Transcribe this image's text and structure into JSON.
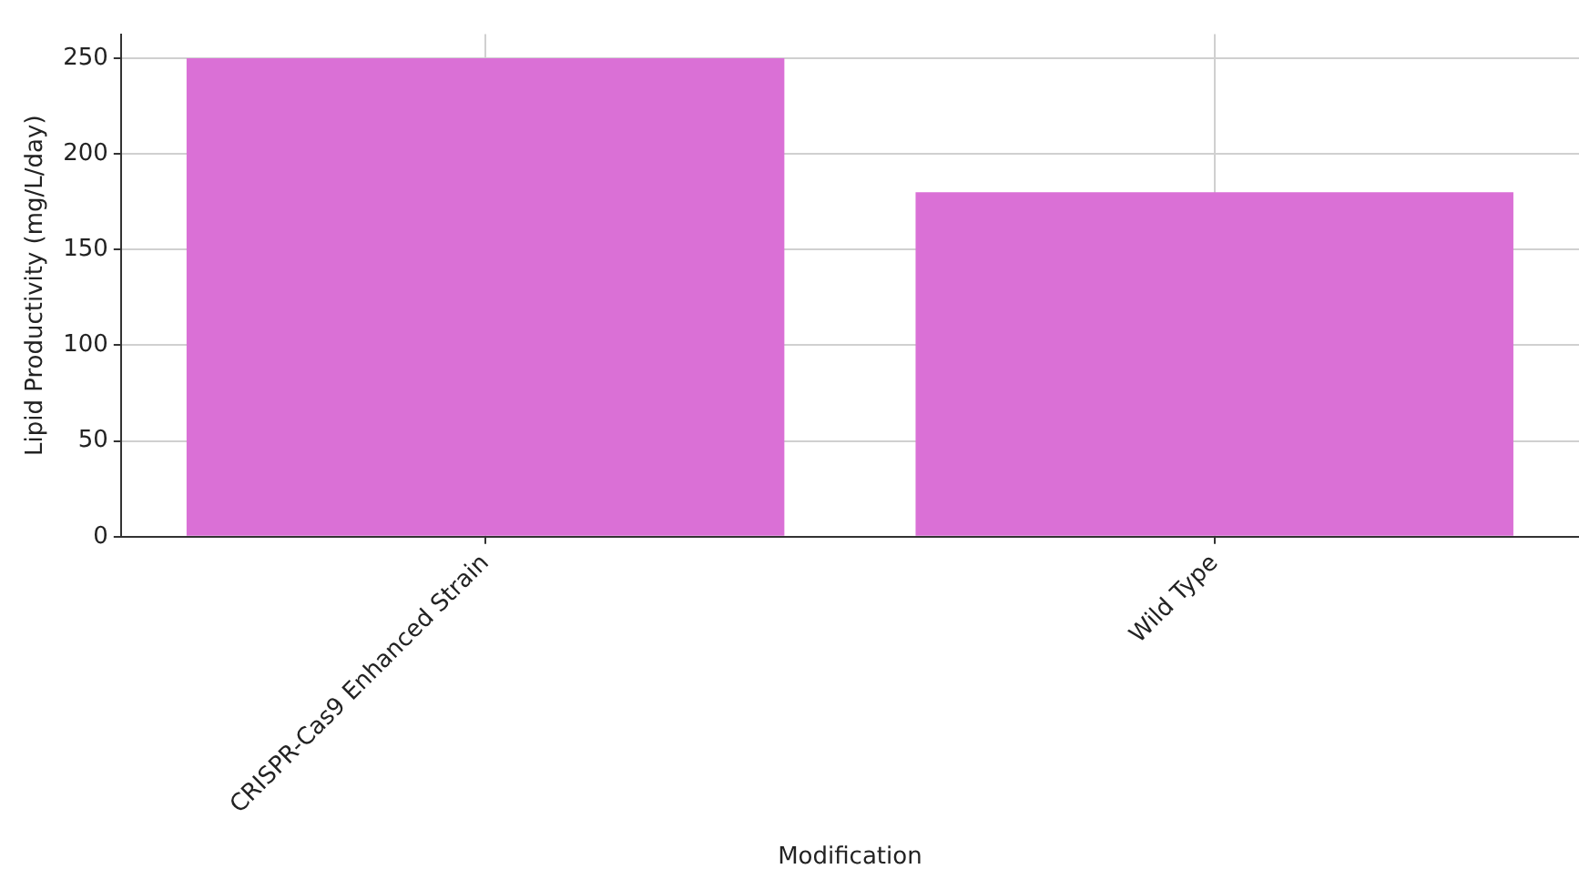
{
  "chart_data": {
    "type": "bar",
    "xlabel": "Modification",
    "ylabel": "Lipid Productivity (mg/L/day)",
    "categories": [
      "CRISPR-Cas9 Enhanced Strain",
      "Wild Type"
    ],
    "values": [
      250,
      180
    ],
    "color": "#da70d6",
    "ylim": [
      0,
      262.5
    ],
    "yticks": [
      0,
      50,
      100,
      150,
      200,
      250
    ],
    "grid": true,
    "legend": false
  }
}
